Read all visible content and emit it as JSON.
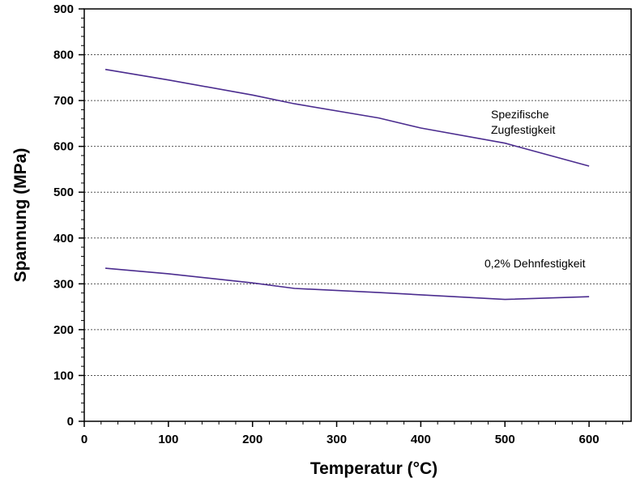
{
  "chart_data": {
    "type": "line",
    "xlabel": "Temperatur (°C)",
    "ylabel": "Spannung (MPa)",
    "xlim": [
      0,
      650
    ],
    "ylim": [
      0,
      900
    ],
    "x_ticks": [
      0,
      100,
      200,
      300,
      400,
      500,
      600
    ],
    "y_ticks": [
      0,
      100,
      200,
      300,
      400,
      500,
      600,
      700,
      800,
      900
    ],
    "grid": "horizontal dashed",
    "series_color": "#4b2c8f",
    "series": [
      {
        "name": "Spezifische Zugfestigkeit",
        "label_lines": [
          "Spezifische",
          "Zugfestigkeit"
        ],
        "x": [
          25,
          100,
          200,
          250,
          350,
          400,
          500,
          600
        ],
        "y": [
          768,
          745,
          712,
          693,
          662,
          640,
          607,
          557
        ]
      },
      {
        "name": "0,2% Dehnfestigkeit",
        "label_lines": [
          "0,2% Dehnfestigkeit"
        ],
        "x": [
          25,
          100,
          200,
          250,
          350,
          400,
          500,
          600
        ],
        "y": [
          334,
          322,
          302,
          290,
          281,
          276,
          266,
          272
        ]
      }
    ]
  }
}
